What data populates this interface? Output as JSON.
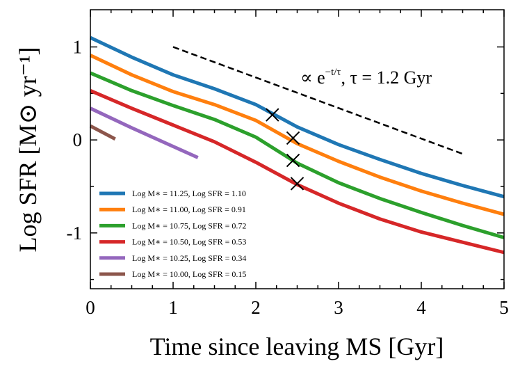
{
  "chart_data": {
    "type": "line",
    "xlabel": "Time since leaving MS [Gyr]",
    "ylabel": "Log SFR [M⊙ yr⁻¹]",
    "xlim": [
      0,
      5
    ],
    "ylim": [
      -1.6,
      1.4
    ],
    "xticks": [
      0,
      1,
      2,
      3,
      4,
      5
    ],
    "yticks": [
      -1,
      0,
      1
    ],
    "xminor": [
      0.25,
      0.5,
      0.75,
      1.25,
      1.5,
      1.75,
      2.25,
      2.5,
      2.75,
      3.25,
      3.5,
      3.75,
      4.25,
      4.5,
      4.75
    ],
    "yminor": [
      -1.5,
      -0.5,
      0.5
    ],
    "series": [
      {
        "name": "Log M∗ = 11.25, Log SFR = 1.10",
        "color": "#1f77b4",
        "x": [
          0,
          0.5,
          1,
          1.5,
          2,
          2.5,
          3,
          3.5,
          4,
          4.5,
          5
        ],
        "values": [
          1.1,
          0.89,
          0.7,
          0.55,
          0.38,
          0.14,
          -0.05,
          -0.21,
          -0.36,
          -0.49,
          -0.61
        ]
      },
      {
        "name": "Log M∗ = 11.00, Log SFR = 0.91",
        "color": "#ff7f0e",
        "x": [
          0,
          0.5,
          1,
          1.5,
          2,
          2.5,
          3,
          3.5,
          4,
          4.5,
          5
        ],
        "values": [
          0.91,
          0.7,
          0.52,
          0.38,
          0.21,
          -0.04,
          -0.23,
          -0.4,
          -0.55,
          -0.68,
          -0.8
        ]
      },
      {
        "name": "Log M∗ = 10.75, Log SFR = 0.72",
        "color": "#2ca02c",
        "x": [
          0,
          0.5,
          1,
          1.5,
          2,
          2.5,
          3,
          3.5,
          4,
          4.5,
          5
        ],
        "values": [
          0.72,
          0.53,
          0.37,
          0.22,
          0.03,
          -0.25,
          -0.46,
          -0.63,
          -0.78,
          -0.92,
          -1.05
        ]
      },
      {
        "name": "Log M∗ = 10.50, Log SFR = 0.53",
        "color": "#d62728",
        "x": [
          0,
          0.5,
          1,
          1.5,
          2,
          2.5,
          3,
          3.5,
          4,
          4.5,
          5
        ],
        "values": [
          0.53,
          0.34,
          0.16,
          -0.02,
          -0.24,
          -0.48,
          -0.68,
          -0.85,
          -0.99,
          -1.1,
          -1.21
        ]
      },
      {
        "name": "Log M∗ = 10.25, Log SFR = 0.34",
        "color": "#9467bd",
        "x": [
          0,
          0.5,
          1,
          1.3
        ],
        "values": [
          0.34,
          0.13,
          -0.07,
          -0.19
        ]
      },
      {
        "name": "Log M∗ = 10.00, Log SFR = 0.15",
        "color": "#8c564b",
        "x": [
          0,
          0.3
        ],
        "values": [
          0.15,
          0.01
        ]
      }
    ],
    "markers": {
      "x": [
        2.2,
        2.45,
        2.45,
        2.5
      ],
      "values": [
        0.27,
        0.02,
        -0.22,
        -0.47
      ]
    },
    "reference_line": {
      "x": [
        1,
        4.5
      ],
      "values": [
        1.0,
        -0.15
      ]
    },
    "annotation": {
      "text": "∝ e",
      "superscript": "−t/τ",
      "rest": ", τ = 1.2 Gyr"
    }
  }
}
